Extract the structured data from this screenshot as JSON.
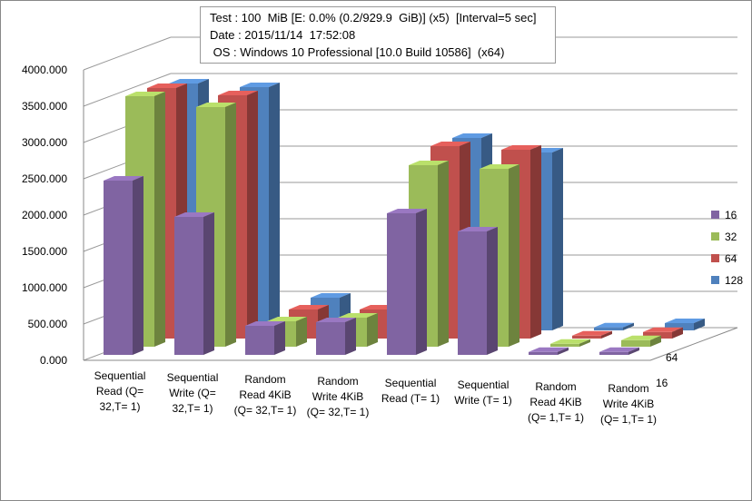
{
  "title_lines": [
    "Test : 100  MiB [E: 0.0% (0.2/929.9  GiB)] (x5)  [Interval=5 sec]",
    "Date : 2015/11/14  17:52:08",
    " OS : Windows 10 Professional [10.0 Build 10586]  (x64)"
  ],
  "chart_data": {
    "type": "bar",
    "subtype": "3d-column",
    "categories": [
      [
        "Sequential",
        "Read (Q=",
        "32,T= 1)"
      ],
      [
        "Sequential",
        "Write (Q=",
        "32,T= 1)"
      ],
      [
        "Random",
        "Read 4KiB",
        "(Q= 32,T= 1)"
      ],
      [
        "Random",
        "Write 4KiB",
        "(Q= 32,T= 1)"
      ],
      [
        "Sequential",
        "Read (T= 1)"
      ],
      [
        "Sequential",
        "Write (T= 1)"
      ],
      [
        "Random",
        "Read 4KiB",
        "(Q= 1,T= 1)"
      ],
      [
        "Random",
        "Write 4KiB",
        "(Q= 1,T= 1)"
      ]
    ],
    "series": [
      {
        "name": "16",
        "color": "#8064a2",
        "values": [
          2400,
          1900,
          400,
          450,
          1950,
          1700,
          40,
          40
        ]
      },
      {
        "name": "32",
        "color": "#9bbb59",
        "values": [
          3450,
          3300,
          350,
          400,
          2500,
          2450,
          40,
          90
        ]
      },
      {
        "name": "64",
        "color": "#c0504d",
        "values": [
          3450,
          3350,
          400,
          400,
          2650,
          2600,
          40,
          90
        ]
      },
      {
        "name": "128",
        "color": "#4f81bd",
        "values": [
          3400,
          3350,
          450,
          250,
          2650,
          2450,
          40,
          100
        ]
      }
    ],
    "yticks": [
      "0.000",
      "500.000",
      "1000.000",
      "1500.000",
      "2000.000",
      "2500.000",
      "3000.000",
      "3500.000",
      "4000.000"
    ],
    "depth_labels": [
      "16",
      "64"
    ],
    "ylim": [
      0,
      4000
    ],
    "grid": true,
    "legend": "right"
  }
}
